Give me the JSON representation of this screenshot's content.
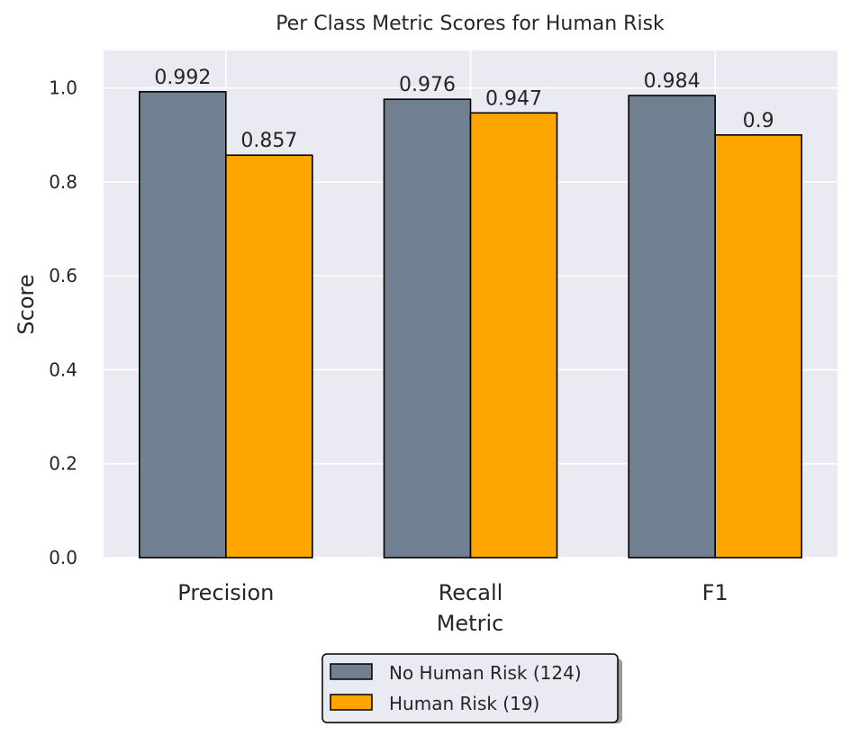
{
  "chart_data": {
    "type": "bar",
    "title": "Per Class Metric Scores for Human Risk",
    "xlabel": "Metric",
    "ylabel": "Score",
    "categories": [
      "Precision",
      "Recall",
      "F1"
    ],
    "ylim": [
      0,
      1.08
    ],
    "yticks": [
      "0.0",
      "0.2",
      "0.4",
      "0.6",
      "0.8",
      "1.0"
    ],
    "grid": true,
    "legend_position": "bottom-center",
    "series": [
      {
        "name": "No Human Risk (124)",
        "values": [
          0.992,
          0.976,
          0.984
        ],
        "labels": [
          "0.992",
          "0.976",
          "0.984"
        ],
        "color": "#708090"
      },
      {
        "name": "Human Risk (19)",
        "values": [
          0.857,
          0.947,
          0.9
        ],
        "labels": [
          "0.857",
          "0.947",
          "0.9"
        ],
        "color": "#FFA500"
      }
    ],
    "colors": {
      "background": "#EAEAF2",
      "grid": "#FFFFFF",
      "edge": "#000000"
    }
  }
}
